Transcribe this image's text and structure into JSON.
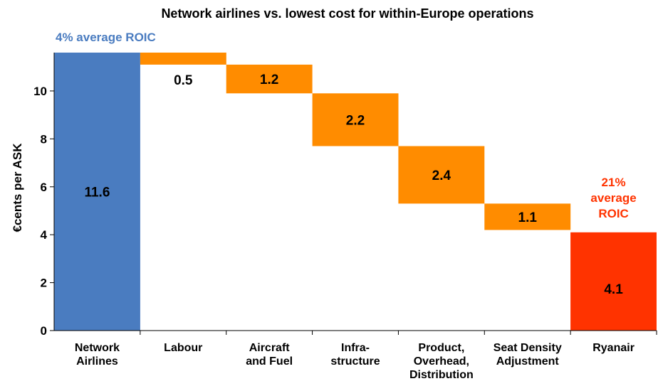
{
  "chart_data": {
    "type": "bar",
    "subtype": "waterfall",
    "title": "Network airlines vs. lowest cost for within-Europe operations",
    "ylabel": "€cents per ASK",
    "xlabel": "",
    "ylim": [
      0,
      11.6
    ],
    "yticks": [
      "0",
      "2",
      "4",
      "6",
      "8",
      "10"
    ],
    "grid": false,
    "categories": [
      [
        "Network",
        "Airlines"
      ],
      [
        "Labour"
      ],
      [
        "Aircraft",
        "and Fuel"
      ],
      [
        "Infra-",
        "structure"
      ],
      [
        "Product,",
        "Overhead,",
        "Distribution"
      ],
      [
        "Seat Density",
        "Adjustment"
      ],
      [
        "Ryanair"
      ]
    ],
    "values": [
      11.6,
      0.5,
      1.2,
      2.2,
      2.4,
      1.1,
      4.1
    ],
    "bar_start": [
      0,
      11.1,
      9.9,
      7.7,
      5.3,
      4.2,
      0
    ],
    "bar_end": [
      11.6,
      11.6,
      11.1,
      9.9,
      7.7,
      5.3,
      4.1
    ],
    "value_labels": [
      "11.6",
      "0.5",
      "1.2",
      "2.2",
      "2.4",
      "1.1",
      "4.1"
    ],
    "bar_colors": [
      "#4a7cc0",
      "#ff8c00",
      "#ff8c00",
      "#ff8c00",
      "#ff8c00",
      "#ff8c00",
      "#ff3300"
    ],
    "annotations": [
      {
        "text_lines": [
          "4% average ROIC"
        ],
        "color": "#4a7cc0"
      },
      {
        "text_lines": [
          "21%",
          "average",
          "ROIC"
        ],
        "color": "#ff3300"
      }
    ]
  }
}
